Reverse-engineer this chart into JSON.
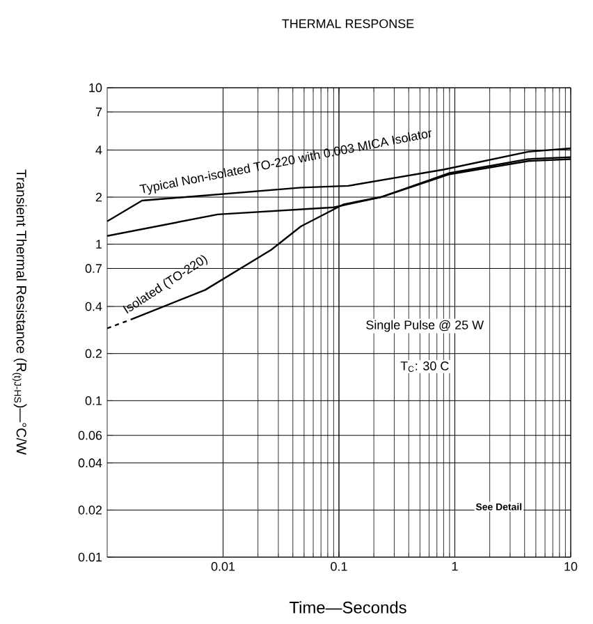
{
  "chart_data": {
    "type": "line",
    "title": "THERMAL RESPONSE",
    "xlabel": "Time—Seconds",
    "ylabel": "Transient Thermal Resistance (R$_{(t)J-HS}$)—°C/W",
    "log": "xy",
    "grid": true,
    "marker": "none",
    "xlim": [
      0.001,
      10
    ],
    "ylim": [
      0.01,
      10
    ],
    "xticks": [
      0.01,
      0.1,
      1,
      10
    ],
    "yticks": [
      10,
      7,
      4,
      2,
      1,
      0.7,
      0.4,
      0.2,
      0.1,
      0.06,
      0.04,
      0.02,
      0.01
    ],
    "series": [
      {
        "color": "#000000",
        "line_style": "solid",
        "x": [
          0.001,
          0.002,
          0.047,
          0.12,
          0.8,
          4.3,
          10
        ],
        "values": [
          1.4,
          1.9,
          2.3,
          2.36,
          3.0,
          3.9,
          4.1
        ]
      },
      {
        "color": "#000000",
        "line_style": "solid",
        "x": [
          0.001,
          0.009,
          0.09,
          0.23,
          0.9,
          4.3,
          10
        ],
        "values": [
          1.13,
          1.55,
          1.72,
          2.0,
          2.85,
          3.5,
          3.6
        ]
      },
      {
        "color": "#000000",
        "line_style": "dashed",
        "x": [
          0.001,
          0.0016
        ],
        "values": [
          0.29,
          0.33
        ]
      },
      {
        "color": "#000000",
        "line_style": "solid",
        "x": [
          0.0016,
          0.007,
          0.026,
          0.047,
          0.11,
          0.23,
          0.9,
          4.3,
          10
        ],
        "values": [
          0.33,
          0.51,
          0.92,
          1.3,
          1.8,
          2.0,
          2.8,
          3.4,
          3.5
        ]
      }
    ],
    "annotations": [
      "Typical Non-isolated TO-220 with 0.003 MICA Isolator",
      "Isolated (TO-220)",
      "Single Pulse @ 25 W",
      "T$_{C}$: 30 C",
      "**See Detail**"
    ]
  }
}
